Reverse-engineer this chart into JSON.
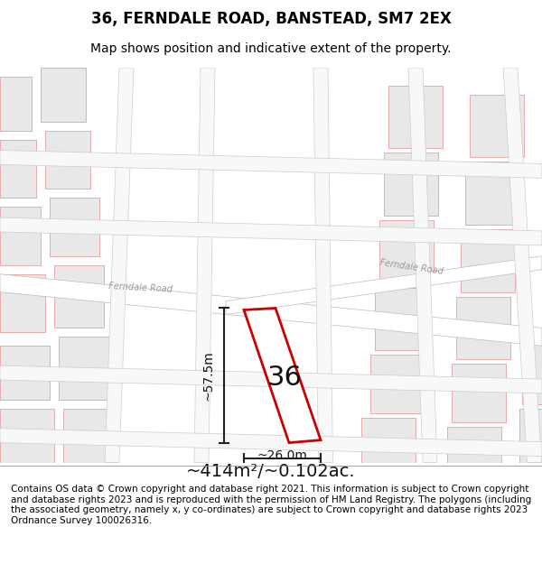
{
  "title": "36, FERNDALE ROAD, BANSTEAD, SM7 2EX",
  "subtitle": "Map shows position and indicative extent of the property.",
  "area_label": "~414m²/~0.102ac.",
  "width_label": "~26.0m",
  "height_label": "~57.5m",
  "number_label": "36",
  "footer": "Contains OS data © Crown copyright and database right 2021. This information is subject to Crown copyright and database rights 2023 and is reproduced with the permission of HM Land Registry. The polygons (including the associated geometry, namely x, y co-ordinates) are subject to Crown copyright and database rights 2023 Ordnance Survey 100026316.",
  "bg_color": "#f0f0f0",
  "map_bg": "#f5f5f5",
  "road_color": "#ffffff",
  "road_stroke": "#c8c8c8",
  "building_fill": "#e8e8e8",
  "building_stroke": "#d0a0a0",
  "highlight_stroke": "#cc0000",
  "highlight_fill": "#ffffff",
  "dim_color": "#222222",
  "title_fontsize": 12,
  "subtitle_fontsize": 10,
  "label_fontsize": 14,
  "number_fontsize": 22,
  "footer_fontsize": 7.5
}
